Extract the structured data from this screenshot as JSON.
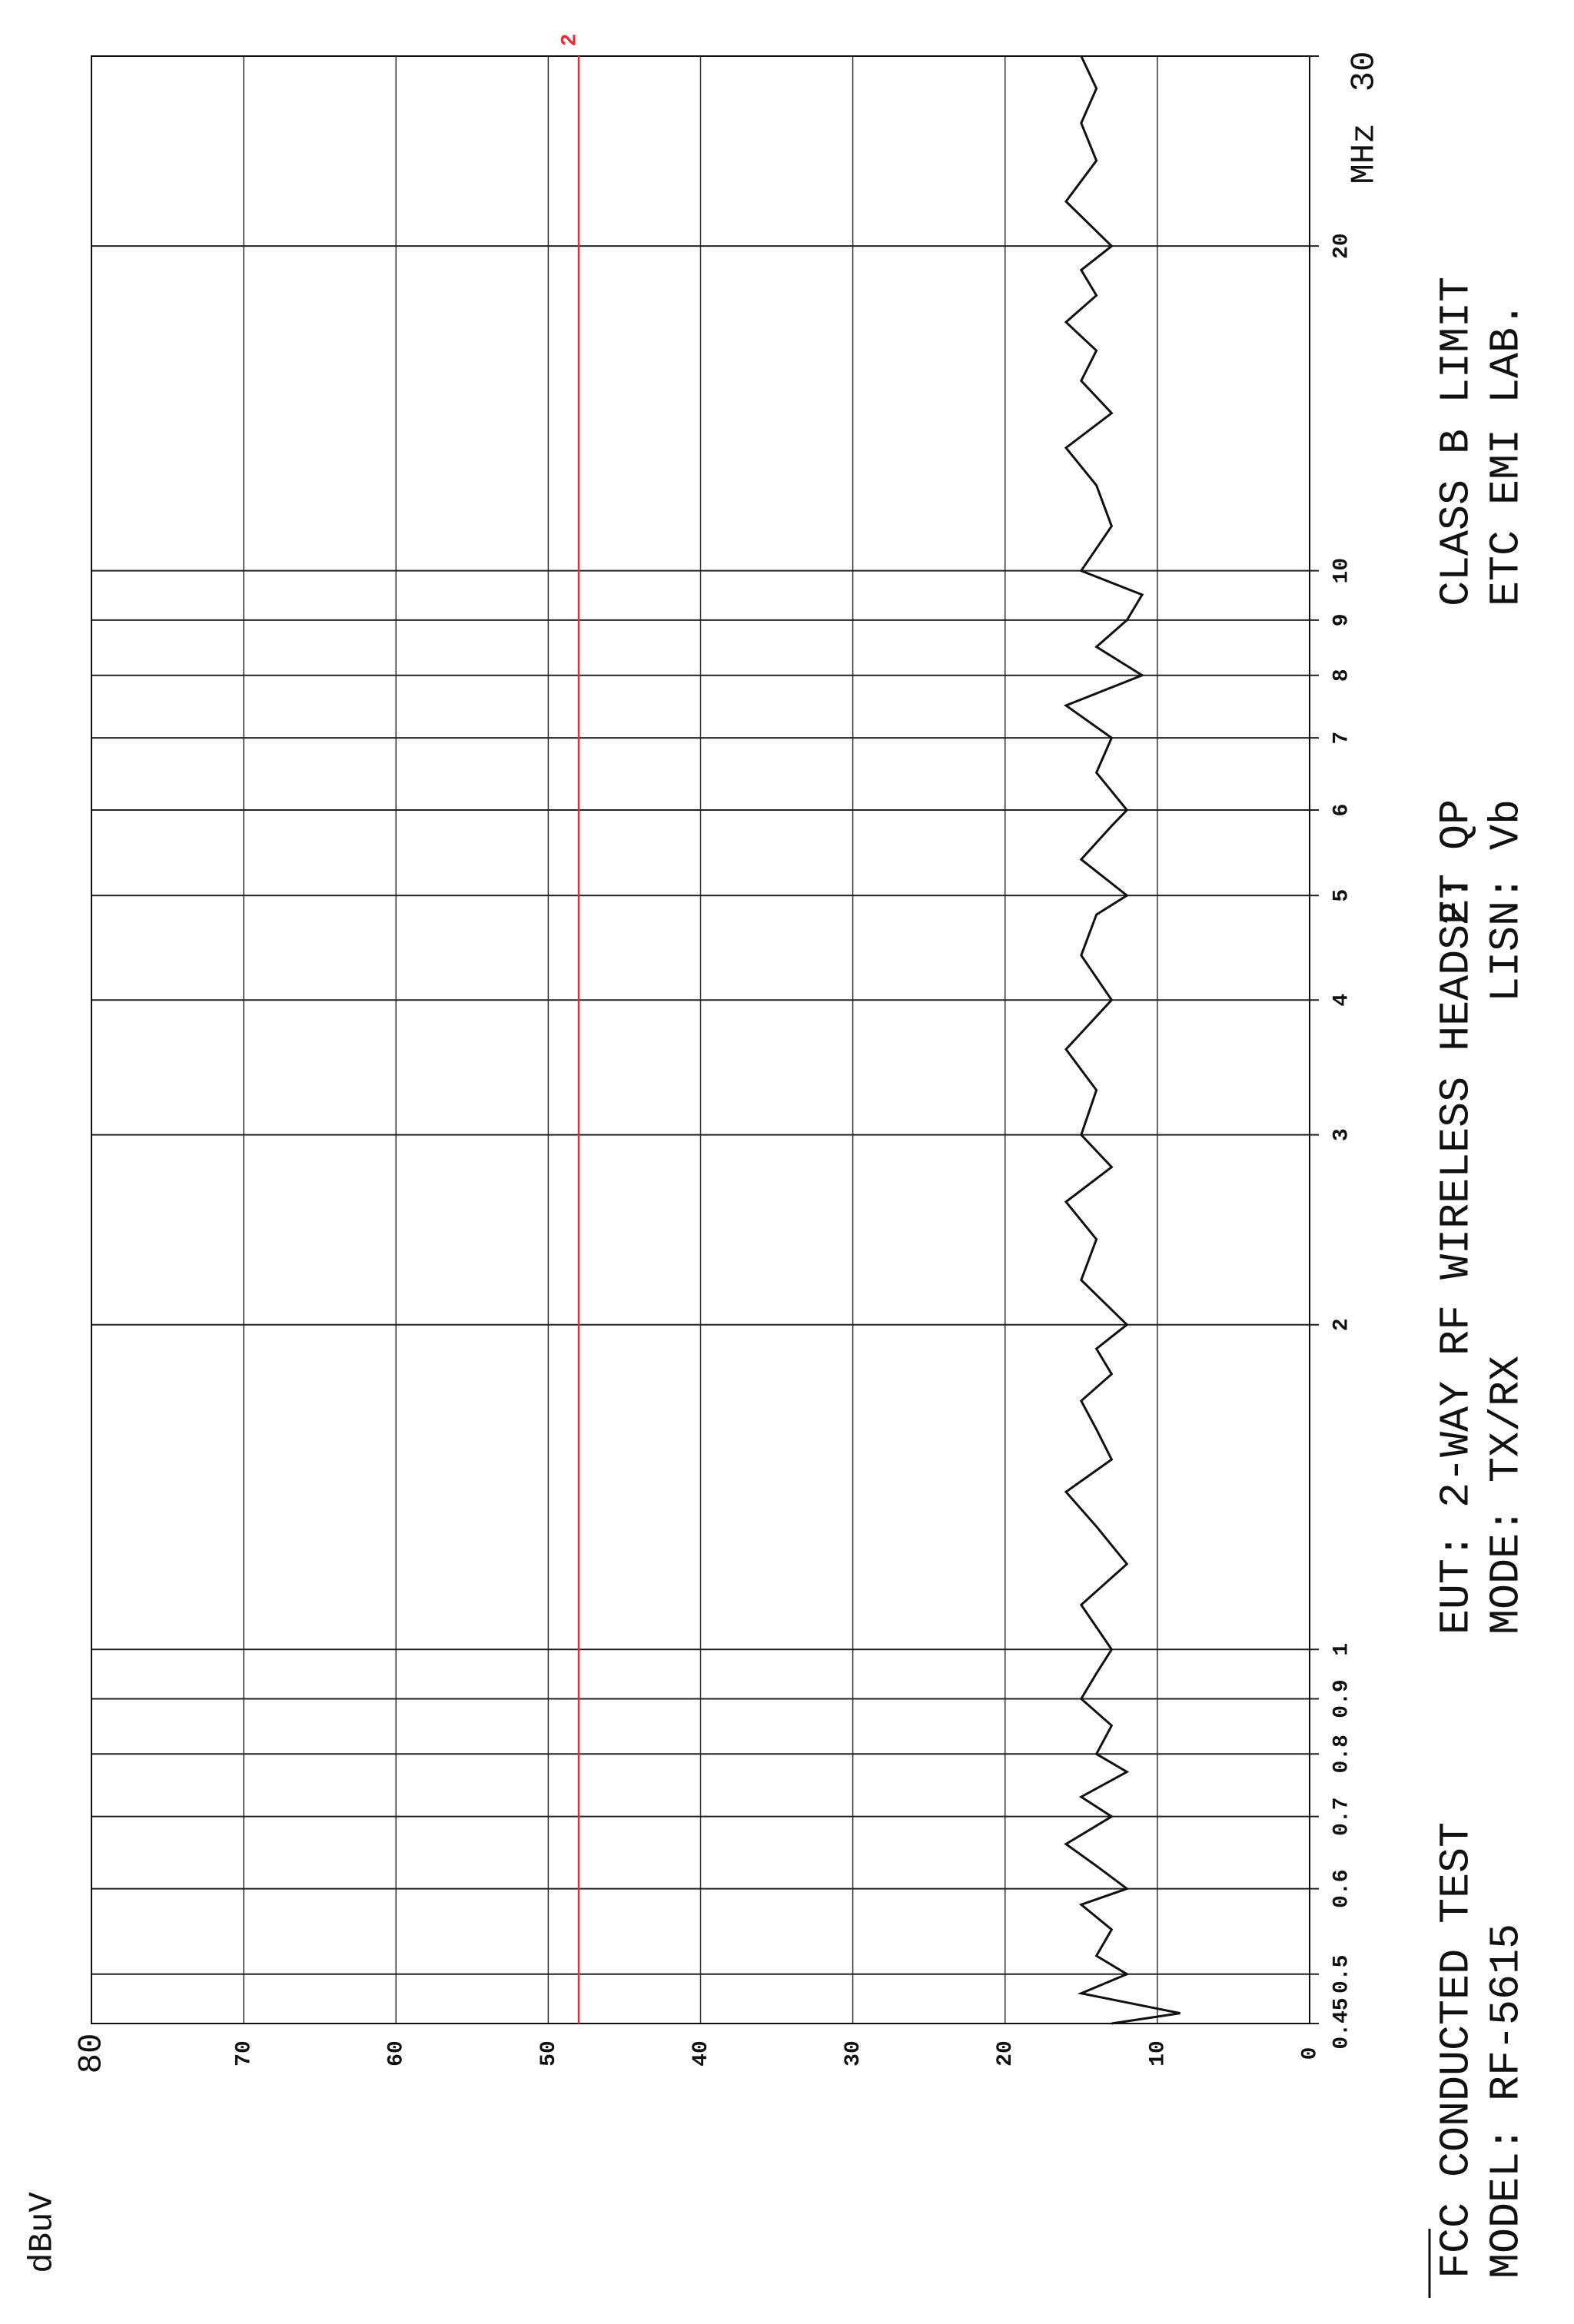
{
  "chart_data": {
    "type": "line",
    "ylabel": "dBuV",
    "xlabel": "MHz",
    "xlim": [
      0.45,
      30
    ],
    "xscale": "log",
    "xticks": [
      0.45,
      0.5,
      0.6,
      0.7,
      0.8,
      0.9,
      1,
      2,
      3,
      4,
      5,
      6,
      7,
      8,
      9,
      10,
      20,
      30
    ],
    "ylim": [
      0,
      80
    ],
    "yticks": [
      0,
      10,
      20,
      30,
      40,
      50,
      60,
      70,
      80
    ],
    "grid": true,
    "x": [
      0.45,
      0.46,
      0.48,
      0.5,
      0.52,
      0.55,
      0.58,
      0.6,
      0.63,
      0.66,
      0.7,
      0.73,
      0.77,
      0.8,
      0.85,
      0.9,
      0.95,
      1,
      1.1,
      1.2,
      1.3,
      1.4,
      1.5,
      1.6,
      1.7,
      1.8,
      1.9,
      2,
      2.2,
      2.4,
      2.6,
      2.8,
      3,
      3.3,
      3.6,
      4,
      4.4,
      4.8,
      5,
      5.4,
      5.8,
      6,
      6.5,
      7,
      7.5,
      8,
      8.5,
      9,
      9.5,
      10,
      11,
      12,
      13,
      14,
      15,
      16,
      17,
      18,
      19,
      20,
      22,
      24,
      26,
      28,
      30
    ],
    "series": [
      {
        "color": "#111111",
        "values": [
          13,
          8.5,
          15,
          12,
          14,
          13,
          15,
          12,
          14,
          16,
          13,
          15,
          12,
          14,
          13,
          15,
          14,
          13,
          15,
          12,
          14,
          16,
          13,
          14,
          15,
          13,
          14,
          12,
          15,
          14,
          16,
          13,
          15,
          14,
          16,
          13,
          15,
          14,
          12,
          15,
          13,
          12,
          14,
          13,
          16,
          11,
          14,
          12,
          11,
          15,
          13,
          14,
          16,
          13,
          15,
          14,
          16,
          14,
          15,
          13,
          16,
          14,
          15,
          14,
          15
        ]
      }
    ],
    "limit": {
      "label": "2",
      "value": 48,
      "color": "#e0303a"
    },
    "notes": [
      "FCC CONDUCTED TEST",
      "MODEL: RF-5615",
      "EUT: 2-WAY RF WIRELESS HEADSET",
      "MODE: TX/RX",
      "2: QP",
      "LISN: Vb",
      "CLASS B LIMIT",
      "ETC EMI LAB."
    ]
  }
}
